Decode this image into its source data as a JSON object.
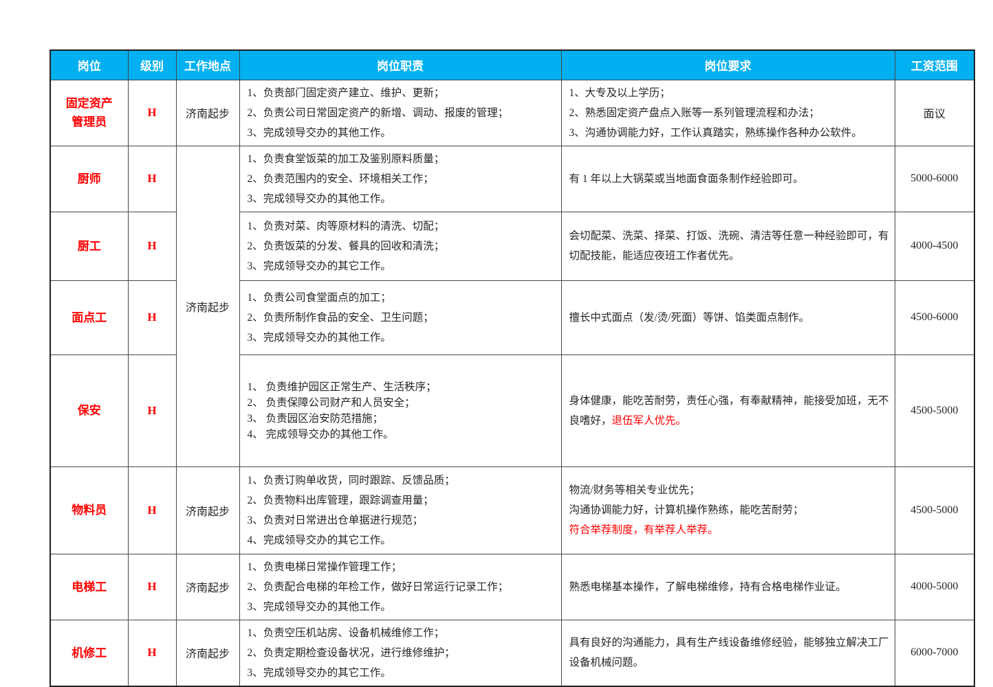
{
  "colors": {
    "header_bg": "#00B0F0",
    "header_text": "#ffffff",
    "accent_red": "#FF0000",
    "body_text": "#262626",
    "border": "#464646"
  },
  "table": {
    "headers": [
      {
        "label": "岗位"
      },
      {
        "label": "级别"
      },
      {
        "label": "工作地点"
      },
      {
        "label": "岗位职责"
      },
      {
        "label": "岗位要求"
      },
      {
        "label": "工资范围"
      }
    ],
    "rows": [
      {
        "position_lines": [
          "固定资产",
          "管理员"
        ],
        "level": "H",
        "location": "济南起步",
        "location_rowspan": 1,
        "duties": [
          "1、负责部门固定资产建立、维护、更新；",
          "2、负责公司日常固定资产的新增、调动、报废的管理；",
          "3、完成领导交办的其他工作。"
        ],
        "requirements": [
          [
            {
              "text": "1、大专及以上学历；"
            }
          ],
          [
            {
              "text": "2、熟悉固定资产盘点入账等一系列管理流程和办法；"
            }
          ],
          [
            {
              "text": "3、沟通协调能力好，工作认真踏实，熟练操作各种办公软件。"
            }
          ]
        ],
        "salary": "面议"
      },
      {
        "position_lines": [
          "厨师"
        ],
        "level": "H",
        "location": "济南起步",
        "location_rowspan": 4,
        "duties": [
          "1、负责食堂饭菜的加工及鉴别原料质量；",
          "2、负责范围内的安全、环境相关工作；",
          "3、完成领导交办的其他工作。"
        ],
        "requirements": [
          [
            {
              "text": "有 1 年以上大锅菜或当地面食面条制作经验即可。"
            }
          ]
        ],
        "salary": "5000-6000"
      },
      {
        "position_lines": [
          "厨工"
        ],
        "level": "H",
        "location": null,
        "duties": [
          "1、负责对菜、肉等原材料的清洗、切配；",
          "2、负责饭菜的分发、餐具的回收和清洗；",
          "3、完成领导交办的其它工作。"
        ],
        "requirements": [
          [
            {
              "text": "会切配菜、洗菜、择菜、打饭、洗碗、清洁等任意一种经验即可，有切配技能，能适应夜班工作者优先。"
            }
          ]
        ],
        "salary": "4000-4500"
      },
      {
        "position_lines": [
          "面点工"
        ],
        "level": "H",
        "location": null,
        "duties": [
          "1、负责公司食堂面点的加工；",
          "2、负责所制作食品的安全、卫生问题；",
          "3、完成领导交办的其他工作。"
        ],
        "requirements": [
          [
            {
              "text": "擅长中式面点（发/烫/死面）等饼、馅类面点制作。"
            }
          ]
        ],
        "salary": "4500-6000"
      },
      {
        "position_lines": [
          "保安"
        ],
        "level": "H",
        "location": null,
        "duties_tight": true,
        "duties": [
          "1、 负责维护园区正常生产、生活秩序；",
          "2、 负责保障公司财产和人员安全；",
          "3、 负责园区治安防范措施；",
          "4、 完成领导交办的其他工作。"
        ],
        "requirements": [
          [
            {
              "text": "身体健康，能吃苦耐劳，责任心强，有奉献精神，能接受加班，无不良嗜好，"
            },
            {
              "text": "退伍军人优先。",
              "red": true
            }
          ]
        ],
        "salary": "4500-5000"
      },
      {
        "position_lines": [
          "物料员"
        ],
        "level": "H",
        "location": "济南起步",
        "location_rowspan": 1,
        "duties": [
          "1、负责订购单收货，同时跟踪、反馈品质；",
          "2、负责物料出库管理，跟踪调查用量；",
          "3、负责对日常进出仓单据进行规范；",
          "4、完成领导交办的其它工作。"
        ],
        "requirements": [
          [
            {
              "text": "物流/财务等相关专业优先；"
            }
          ],
          [
            {
              "text": "沟通协调能力好，计算机操作熟练，能吃苦耐劳；"
            }
          ],
          [
            {
              "text": "符合举荐制度，有举荐人举荐。",
              "red": true
            }
          ]
        ],
        "salary": "4500-5000"
      },
      {
        "position_lines": [
          "电梯工"
        ],
        "level": "H",
        "location": "济南起步",
        "location_rowspan": 1,
        "duties": [
          "1、负责电梯日常操作管理工作；",
          "2、负责配合电梯的年检工作，做好日常运行记录工作；",
          "3、完成领导交办的其他工作。"
        ],
        "requirements": [
          [
            {
              "text": "熟悉电梯基本操作，了解电梯维修，持有合格电梯作业证。"
            }
          ]
        ],
        "salary": "4000-5000"
      },
      {
        "position_lines": [
          "机修工"
        ],
        "level": "H",
        "location": "济南起步",
        "location_rowspan": 1,
        "duties": [
          "1、负责空压机站房、设备机械维修工作；",
          "2、负责定期检查设备状况，进行维修维护；",
          "3、完成领导交办的其它工作。"
        ],
        "requirements": [
          [
            {
              "text": "具有良好的沟通能力，具有生产线设备维修经验，能够独立解决工厂设备机械问题。"
            }
          ]
        ],
        "salary": "6000-7000"
      }
    ]
  }
}
